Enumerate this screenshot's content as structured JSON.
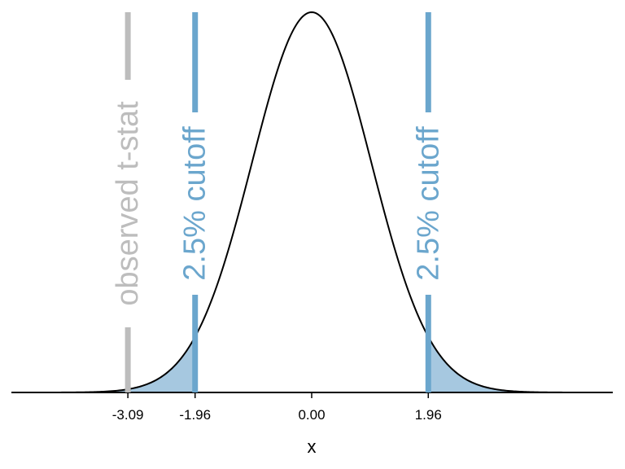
{
  "chart_data": {
    "type": "area",
    "title": "",
    "xlabel": "x",
    "ylabel": "",
    "xlim": [
      -5,
      5
    ],
    "curve": {
      "distribution": "normal",
      "mean": 0,
      "sd": 1,
      "line_color": "#000000"
    },
    "shaded_regions": [
      {
        "from": -5,
        "to": -1.96,
        "color": "#a6c8e0"
      },
      {
        "from": 1.96,
        "to": 5,
        "color": "#a6c8e0"
      }
    ],
    "vertical_lines": [
      {
        "x": -3.09,
        "label": "observed t-stat",
        "color": "#bdbdbd"
      },
      {
        "x": -1.96,
        "label": "2.5% cutoff",
        "color": "#6ba6cd"
      },
      {
        "x": 1.96,
        "label": "2.5% cutoff",
        "color": "#6ba6cd"
      }
    ],
    "x_ticks": [
      {
        "value": -3.09,
        "label": "-3.09"
      },
      {
        "value": -1.96,
        "label": "-1.96"
      },
      {
        "value": 0,
        "label": "0.00"
      },
      {
        "value": 1.96,
        "label": "1.96"
      }
    ]
  }
}
